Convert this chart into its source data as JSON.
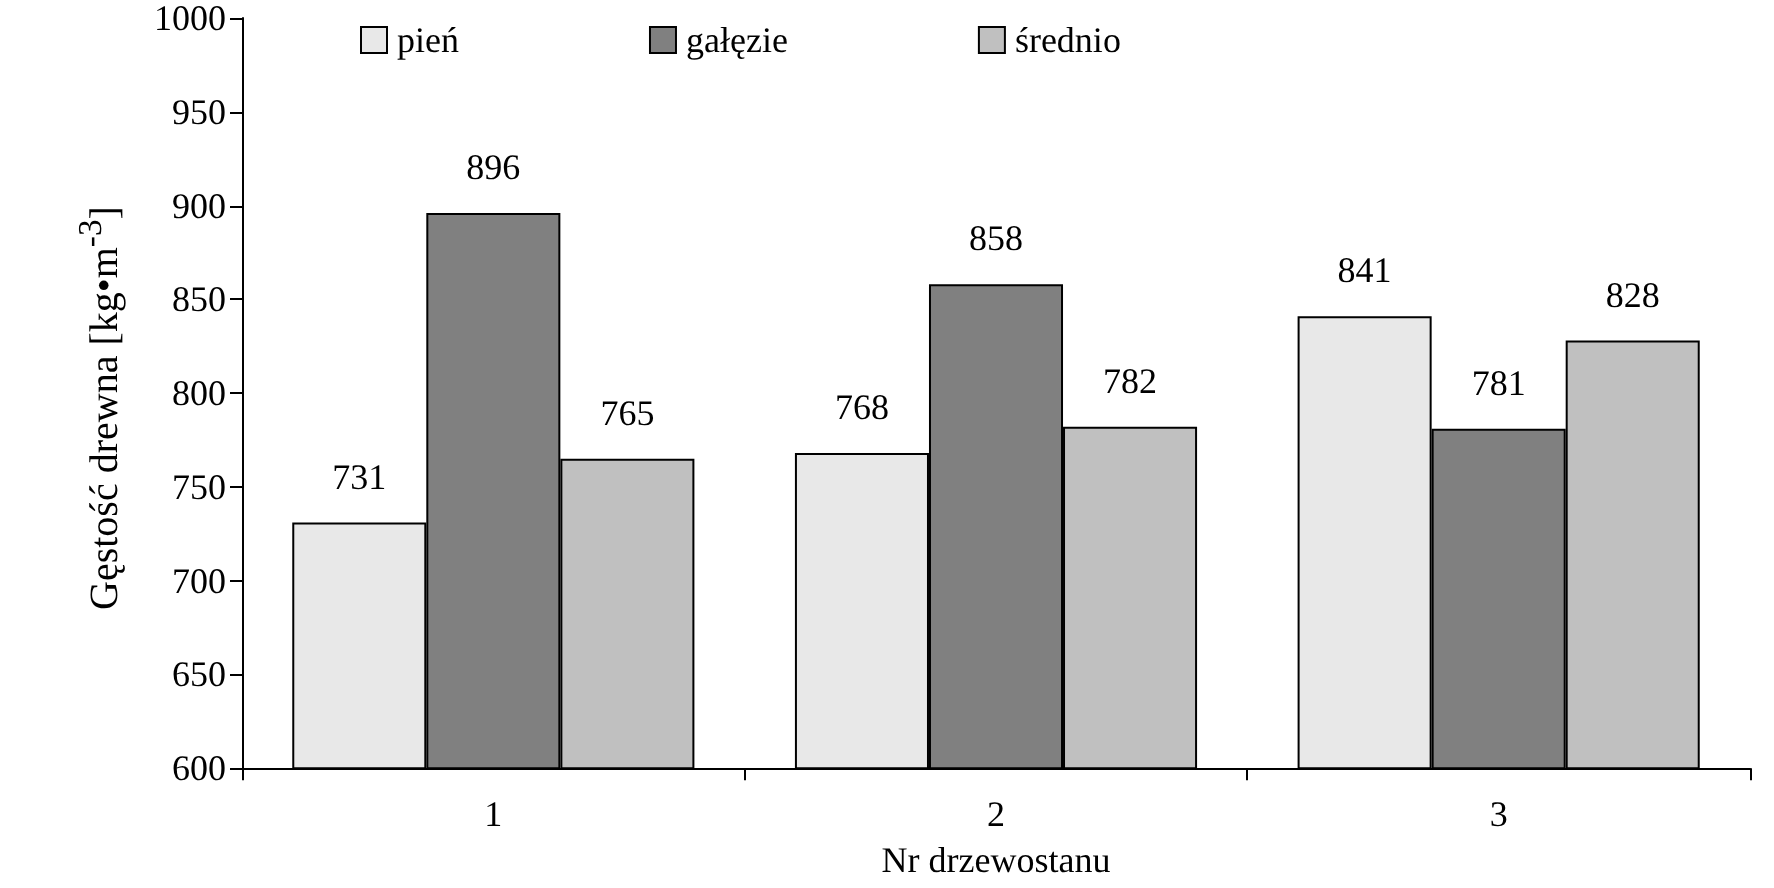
{
  "chart_data": {
    "type": "bar",
    "xlabel": "Nr drzewostanu",
    "ylabel": "Gęstość drewna [kg•m$^{-3}$]",
    "categories": [
      "1",
      "2",
      "3"
    ],
    "series": [
      {
        "name": "pień",
        "color": "#e8e8e8",
        "values": [
          731,
          768,
          841
        ]
      },
      {
        "name": "gałęzie",
        "color": "#808080",
        "values": [
          896,
          858,
          781
        ]
      },
      {
        "name": "średnio",
        "color": "#c0c0c0",
        "values": [
          765,
          782,
          828
        ]
      }
    ],
    "ylim": [
      600,
      1000
    ],
    "yticks": [
      600,
      650,
      700,
      750,
      800,
      850,
      900,
      950,
      1000
    ],
    "data_labels": true,
    "grid": false,
    "legend": "top"
  }
}
